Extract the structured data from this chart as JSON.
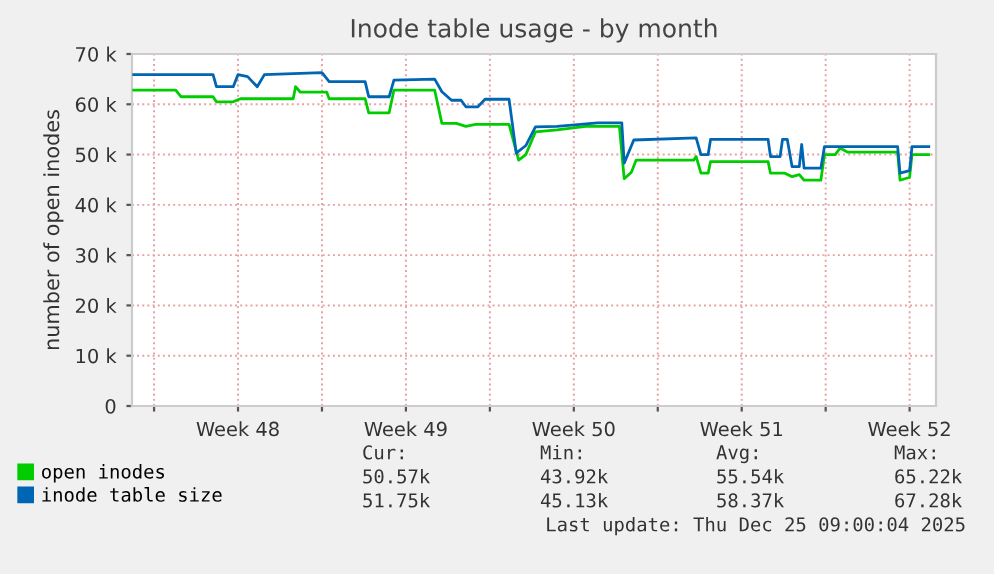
{
  "chart_data": {
    "type": "line",
    "title": "Inode table usage - by month",
    "ylabel": "number of open inodes",
    "xlim": [
      "2025-11-23T01:55",
      "2025-12-26T14:24"
    ],
    "ylim": [
      0,
      70000
    ],
    "xticks": [
      {
        "value": "2025-11-24",
        "label": null
      },
      {
        "value": "2025-11-27T12:00",
        "label": "Week 48"
      },
      {
        "value": "2025-12-01",
        "label": null
      },
      {
        "value": "2025-12-04T12:00",
        "label": "Week 49"
      },
      {
        "value": "2025-12-08",
        "label": null
      },
      {
        "value": "2025-12-11T12:00",
        "label": "Week 50"
      },
      {
        "value": "2025-12-15",
        "label": null
      },
      {
        "value": "2025-12-18T12:00",
        "label": "Week 51"
      },
      {
        "value": "2025-12-22",
        "label": null
      },
      {
        "value": "2025-12-25T12:00",
        "label": "Week 52"
      }
    ],
    "yticks": [
      0,
      {
        "value": 10000,
        "label": "10 k"
      },
      {
        "value": 20000,
        "label": "20 k"
      },
      {
        "value": 30000,
        "label": "30 k"
      },
      {
        "value": 40000,
        "label": "40 k"
      },
      {
        "value": 50000,
        "label": "50 k"
      },
      {
        "value": 60000,
        "label": "60 k"
      },
      {
        "value": 70000,
        "label": "70 k"
      }
    ],
    "grid": true,
    "legend": "bottom",
    "marker": "none",
    "line_style": "solid",
    "series": [
      {
        "name": "open inodes",
        "color": "#00cc00",
        "x": [
          "2025-11-23T03:36",
          "2025-11-24T21:36",
          "2025-11-25T02:53",
          "2025-11-26T11:02",
          "2025-11-26T14:24",
          "2025-11-27T07:12",
          "2025-11-27T14:24",
          "2025-11-29T19:12",
          "2025-11-29T21:36",
          "2025-11-30T02:24",
          "2025-12-01T04:48",
          "2025-12-01T07:12",
          "2025-12-02T19:12",
          "2025-12-02T22:48",
          "2025-12-03T19:12",
          "2025-12-04T00:00",
          "2025-12-05T16:48",
          "2025-12-06T00:00",
          "2025-12-06T14:24",
          "2025-12-07T00:00",
          "2025-12-07T09:36",
          "2025-12-07T21:36",
          "2025-12-08T19:12",
          "2025-12-09T04:48",
          "2025-12-09T12:00",
          "2025-12-09T21:36",
          "2025-12-10T19:12",
          "2025-12-12T00:00",
          "2025-12-13T09:36",
          "2025-12-13T14:24",
          "2025-12-13T21:36",
          "2025-12-14T02:24",
          "2025-12-16T12:00",
          "2025-12-16T14:24",
          "2025-12-16T19:12",
          "2025-12-17T02:24",
          "2025-12-17T04:48",
          "2025-12-19T14:24",
          "2025-12-19T16:48",
          "2025-12-20T07:12",
          "2025-12-20T14:24",
          "2025-12-20T21:36",
          "2025-12-21T02:24",
          "2025-12-21T19:12",
          "2025-12-21T22:48",
          "2025-12-22T09:36",
          "2025-12-22T14:24",
          "2025-12-22T21:36",
          "2025-12-25T00:00",
          "2025-12-25T02:24",
          "2025-12-25T12:00",
          "2025-12-25T14:24",
          "2025-12-26T07:12"
        ],
        "values": [
          62800,
          62800,
          61500,
          61500,
          60500,
          60500,
          61100,
          61100,
          63500,
          62400,
          62400,
          61100,
          61100,
          58300,
          58300,
          62800,
          62800,
          56200,
          56200,
          55600,
          56000,
          56000,
          56000,
          48900,
          50000,
          54500,
          54900,
          55600,
          55600,
          45200,
          46500,
          48900,
          48900,
          49600,
          46300,
          46300,
          48600,
          48600,
          46300,
          46300,
          45600,
          46000,
          44900,
          44900,
          50000,
          50000,
          51300,
          50500,
          50500,
          44900,
          45500,
          50000,
          50000
        ]
      },
      {
        "name": "inode table size",
        "color": "#0066b3",
        "x": [
          "2025-11-23T03:36",
          "2025-11-26T11:02",
          "2025-11-26T14:24",
          "2025-11-27T07:12",
          "2025-11-27T12:00",
          "2025-11-27T21:36",
          "2025-11-28T07:12",
          "2025-11-28T14:24",
          "2025-12-01T00:00",
          "2025-12-01T07:12",
          "2025-12-02T19:12",
          "2025-12-02T22:48",
          "2025-12-03T19:12",
          "2025-12-04T00:00",
          "2025-12-05T16:48",
          "2025-12-06T00:00",
          "2025-12-06T09:36",
          "2025-12-06T19:12",
          "2025-12-07T00:00",
          "2025-12-07T12:00",
          "2025-12-07T19:12",
          "2025-12-08T19:12",
          "2025-12-09T02:24",
          "2025-12-09T12:00",
          "2025-12-09T21:36",
          "2025-12-10T19:12",
          "2025-12-12T12:00",
          "2025-12-13T12:00",
          "2025-12-13T14:24",
          "2025-12-14T00:00",
          "2025-12-16T14:24",
          "2025-12-16T19:12",
          "2025-12-17T02:24",
          "2025-12-17T04:48",
          "2025-12-19T14:24",
          "2025-12-19T16:48",
          "2025-12-20T02:24",
          "2025-12-20T04:48",
          "2025-12-20T09:36",
          "2025-12-20T14:24",
          "2025-12-20T21:36",
          "2025-12-21T00:00",
          "2025-12-21T02:24",
          "2025-12-21T19:12",
          "2025-12-21T22:48",
          "2025-12-25T00:00",
          "2025-12-25T02:24",
          "2025-12-25T12:00",
          "2025-12-25T14:24",
          "2025-12-26T07:12"
        ],
        "values": [
          65900,
          65900,
          63500,
          63500,
          65900,
          65500,
          63500,
          65900,
          66300,
          64500,
          64500,
          61500,
          61500,
          64800,
          65000,
          62500,
          60800,
          60800,
          59500,
          59500,
          61000,
          61000,
          50300,
          51800,
          55500,
          55600,
          56300,
          56300,
          48300,
          52900,
          53300,
          50000,
          50000,
          53000,
          53000,
          49600,
          49600,
          53000,
          53000,
          47600,
          47600,
          52000,
          47300,
          47300,
          51600,
          51600,
          46300,
          46800,
          51600,
          51600
        ]
      }
    ],
    "annotations": [
      "Cur:",
      "Min:",
      "Avg:",
      "Max:",
      "50.57k",
      "43.92k",
      "55.54k",
      "65.22k",
      "51.75k",
      "45.13k",
      "58.37k",
      "67.28k",
      "Last update: Thu Dec 25 09:00:04 2025"
    ]
  }
}
